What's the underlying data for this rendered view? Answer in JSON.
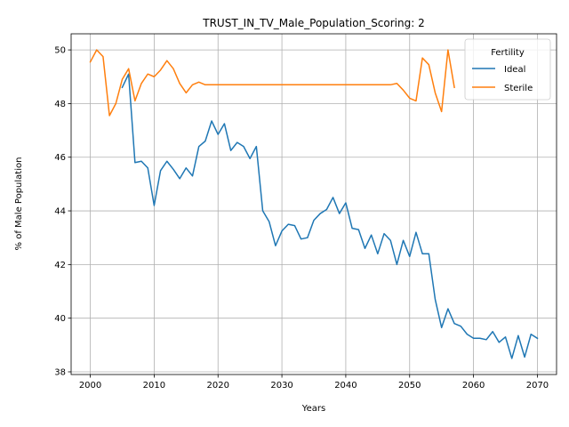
{
  "chart_data": {
    "type": "line",
    "title": "TRUST_IN_TV_Male_Population_Scoring: 2",
    "xlabel": "Years",
    "ylabel": "% of Male Population",
    "xlim": [
      1997,
      2073
    ],
    "ylim": [
      37.9,
      50.6
    ],
    "x_ticks": [
      2000,
      2010,
      2020,
      2030,
      2040,
      2050,
      2060,
      2070
    ],
    "x_tick_labels": [
      "2000",
      "2010",
      "2020",
      "2030",
      "2040",
      "2050",
      "2060",
      "2070"
    ],
    "y_ticks": [
      38,
      40,
      42,
      44,
      46,
      48,
      50
    ],
    "y_tick_labels": [
      "38",
      "40",
      "42",
      "44",
      "46",
      "48",
      "50"
    ],
    "grid": true,
    "legend": {
      "title": "Fertility",
      "location": "upper right"
    },
    "series": [
      {
        "name": "Ideal",
        "color": "#1f77b4",
        "x": [
          2005,
          2006,
          2007,
          2008,
          2009,
          2010,
          2011,
          2012,
          2013,
          2014,
          2015,
          2016,
          2017,
          2018,
          2019,
          2020,
          2021,
          2022,
          2023,
          2024,
          2025,
          2026,
          2027,
          2028,
          2029,
          2030,
          2031,
          2032,
          2033,
          2034,
          2035,
          2036,
          2037,
          2038,
          2039,
          2040,
          2041,
          2042,
          2043,
          2044,
          2045,
          2046,
          2047,
          2048,
          2049,
          2050,
          2051,
          2052,
          2053,
          2054,
          2055,
          2056,
          2057,
          2058,
          2059,
          2060,
          2061,
          2062,
          2063,
          2064,
          2065,
          2066,
          2067,
          2068,
          2069,
          2070
        ],
        "values": [
          48.6,
          49.1,
          45.8,
          45.85,
          45.6,
          44.2,
          45.5,
          45.85,
          45.55,
          45.2,
          45.6,
          45.3,
          46.4,
          46.6,
          47.35,
          46.85,
          47.25,
          46.25,
          46.55,
          46.4,
          45.95,
          46.4,
          44.0,
          43.6,
          42.7,
          43.25,
          43.5,
          43.45,
          42.95,
          43.0,
          43.65,
          43.9,
          44.05,
          44.5,
          43.9,
          44.3,
          43.35,
          43.3,
          42.6,
          43.1,
          42.4,
          43.15,
          42.9,
          42.0,
          42.9,
          42.3,
          43.2,
          42.4,
          42.4,
          40.7,
          39.65,
          40.35,
          39.8,
          39.7,
          39.4,
          39.25,
          39.25,
          39.2,
          39.5,
          39.1,
          39.3,
          38.5,
          39.35,
          38.55,
          39.4,
          39.25
        ]
      },
      {
        "name": "Sterile",
        "color": "#ff7f0e",
        "x": [
          2000,
          2001,
          2002,
          2003,
          2004,
          2005,
          2006,
          2007,
          2008,
          2009,
          2010,
          2011,
          2012,
          2013,
          2014,
          2015,
          2016,
          2017,
          2018,
          2019,
          2020,
          2021,
          2022,
          2023,
          2024,
          2025,
          2026,
          2027,
          2028,
          2029,
          2030,
          2031,
          2032,
          2033,
          2034,
          2035,
          2036,
          2037,
          2038,
          2039,
          2040,
          2041,
          2042,
          2043,
          2044,
          2045,
          2046,
          2047,
          2048,
          2049,
          2050,
          2051,
          2052,
          2053,
          2054,
          2055,
          2056,
          2057
        ],
        "values": [
          49.55,
          50.0,
          49.75,
          47.55,
          48.0,
          48.9,
          49.3,
          48.1,
          48.75,
          49.1,
          49.0,
          49.25,
          49.6,
          49.3,
          48.75,
          48.4,
          48.7,
          48.8,
          48.7,
          48.7,
          48.7,
          48.7,
          48.7,
          48.7,
          48.7,
          48.7,
          48.7,
          48.7,
          48.7,
          48.7,
          48.7,
          48.7,
          48.7,
          48.7,
          48.7,
          48.7,
          48.7,
          48.7,
          48.7,
          48.7,
          48.7,
          48.7,
          48.7,
          48.7,
          48.7,
          48.7,
          48.7,
          48.7,
          48.75,
          48.5,
          48.2,
          48.1,
          49.7,
          49.45,
          48.4,
          47.7,
          50.0,
          48.6
        ]
      }
    ]
  }
}
